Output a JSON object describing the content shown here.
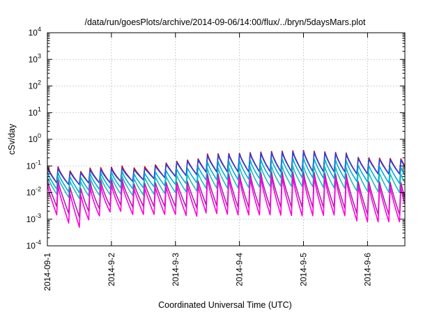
{
  "chart_data": {
    "type": "line",
    "title": "/data/run/goesPlots/archive/2014-09-06/14:00/flux/../bryn/5daysMars.plot",
    "xlabel": "Coordinated Universal Time (UTC)",
    "ylabel": "cSv/day",
    "x_tick_labels": [
      "2014-09-1",
      "2014-9-2",
      "2014-9-3",
      "2014-9-4",
      "2014-9-5",
      "2014-9-6"
    ],
    "x_start_date": "2014-09-01T00:00",
    "x_end_date": "2014-09-06T14:00",
    "y_scale": "log",
    "ylim": [
      0.0001,
      10000
    ],
    "y_ticks": [
      {
        "base": "10",
        "exp": "-4",
        "value": 0.0001
      },
      {
        "base": "10",
        "exp": "-3",
        "value": 0.001
      },
      {
        "base": "10",
        "exp": "-2",
        "value": 0.01
      },
      {
        "base": "10",
        "exp": "-1",
        "value": 0.1
      },
      {
        "base": "10",
        "exp": "0",
        "value": 1
      },
      {
        "base": "10",
        "exp": "1",
        "value": 10
      },
      {
        "base": "10",
        "exp": "2",
        "value": 100
      },
      {
        "base": "10",
        "exp": "3",
        "value": 1000
      },
      {
        "base": "10",
        "exp": "4",
        "value": 10000
      }
    ],
    "grid": true,
    "legend": "none",
    "period_hours": 4,
    "x_points_days": [
      0,
      0.5,
      1,
      1.5,
      2,
      2.5,
      3,
      3.5,
      4,
      4.5,
      5,
      5.5,
      5.583
    ],
    "series": [
      {
        "color": "#dd0000",
        "peak": [
          0.1,
          0.08,
          0.09,
          0.12,
          0.2,
          0.28,
          0.3,
          0.35,
          0.38,
          0.32,
          0.28,
          0.25,
          0.25
        ],
        "trough": [
          0.02,
          0.02,
          0.02,
          0.03,
          0.04,
          0.05,
          0.05,
          0.05,
          0.05,
          0.05,
          0.05,
          0.05,
          0.05
        ]
      },
      {
        "color": "#2244dd",
        "peak": [
          0.09,
          0.07,
          0.08,
          0.1,
          0.18,
          0.25,
          0.28,
          0.32,
          0.35,
          0.3,
          0.25,
          0.22,
          0.22
        ],
        "trough": [
          0.02,
          0.02,
          0.02,
          0.03,
          0.04,
          0.05,
          0.05,
          0.05,
          0.05,
          0.05,
          0.05,
          0.05,
          0.05
        ]
      },
      {
        "color": "#00aadd",
        "peak": [
          0.06,
          0.05,
          0.06,
          0.07,
          0.1,
          0.14,
          0.16,
          0.18,
          0.2,
          0.17,
          0.14,
          0.12,
          0.12
        ],
        "trough": [
          0.012,
          0.01,
          0.012,
          0.015,
          0.02,
          0.025,
          0.025,
          0.03,
          0.03,
          0.028,
          0.025,
          0.022,
          0.022
        ]
      },
      {
        "color": "#22bbbb",
        "peak": [
          0.04,
          0.035,
          0.04,
          0.05,
          0.06,
          0.08,
          0.09,
          0.1,
          0.1,
          0.09,
          0.08,
          0.07,
          0.07
        ],
        "trough": [
          0.008,
          0.006,
          0.007,
          0.008,
          0.01,
          0.012,
          0.012,
          0.014,
          0.014,
          0.012,
          0.011,
          0.01,
          0.01
        ]
      },
      {
        "color": "#aa22aa",
        "peak": [
          0.03,
          0.025,
          0.03,
          0.035,
          0.04,
          0.05,
          0.05,
          0.06,
          0.06,
          0.05,
          0.05,
          0.045,
          0.045
        ],
        "trough": [
          0.003,
          0.0012,
          0.0025,
          0.003,
          0.003,
          0.0025,
          0.002,
          0.002,
          0.002,
          0.002,
          0.0015,
          0.0015,
          0.0015
        ]
      },
      {
        "color": "#ff00dd",
        "peak": [
          0.02,
          0.015,
          0.02,
          0.025,
          0.03,
          0.035,
          0.035,
          0.04,
          0.04,
          0.035,
          0.035,
          0.03,
          0.03
        ],
        "trough": [
          0.0015,
          0.0005,
          0.0015,
          0.0015,
          0.0015,
          0.0012,
          0.001,
          0.001,
          0.0009,
          0.001,
          0.0008,
          0.0008,
          0.0008
        ]
      }
    ]
  }
}
